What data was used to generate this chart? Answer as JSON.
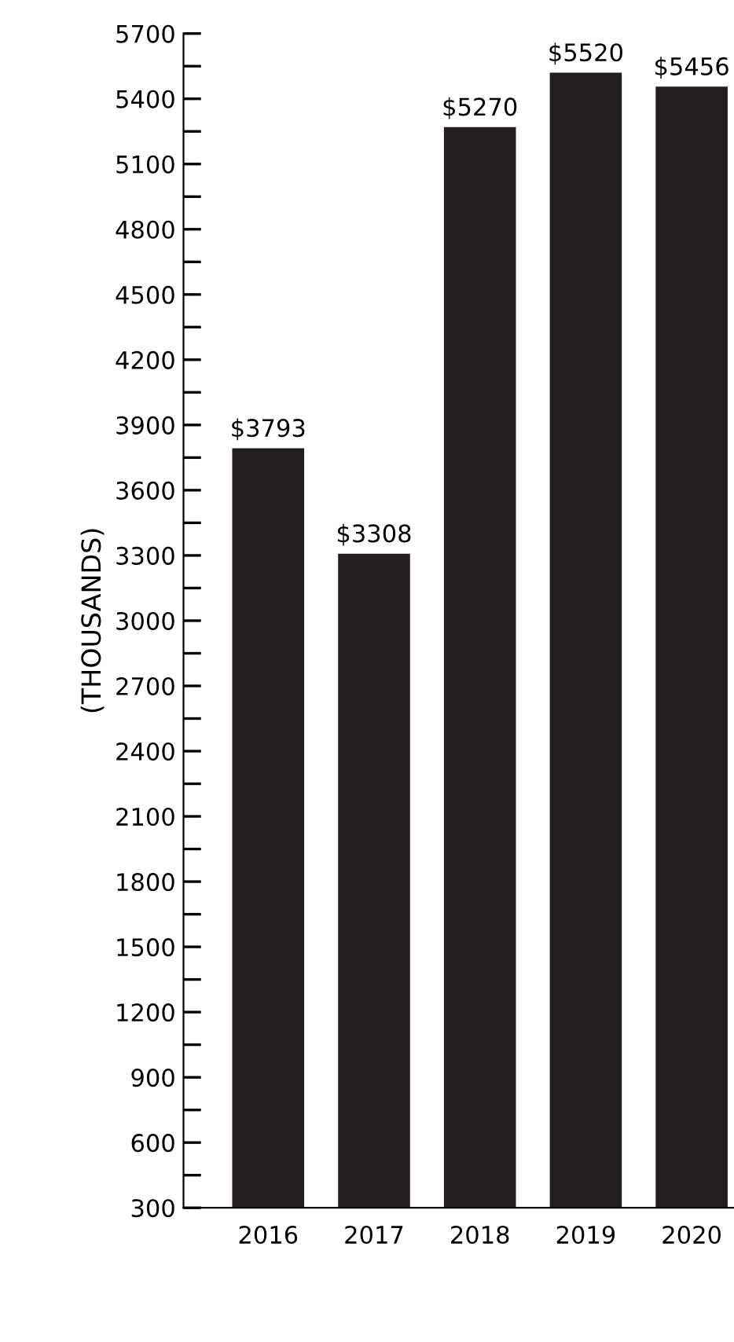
{
  "chart_data": {
    "type": "bar",
    "categories": [
      "2016",
      "2017",
      "2018",
      "2019",
      "2020"
    ],
    "values": [
      3793,
      3308,
      5270,
      5520,
      5456
    ],
    "value_labels": [
      "$3793",
      "$3308",
      "$5270",
      "$5520",
      "$5456"
    ],
    "color": "#231f20",
    "ylabel": "(THOUSANDS)",
    "ylim": [
      300,
      5700
    ],
    "yticks": [
      300,
      {
        "value": 450,
        "label": null
      },
      600,
      {
        "value": 750,
        "label": null
      },
      900,
      {
        "value": 1050,
        "label": null
      },
      1200,
      {
        "value": 1350,
        "label": null
      },
      1500,
      {
        "value": 1650,
        "label": null
      },
      1800,
      {
        "value": 1950,
        "label": null
      },
      2100,
      {
        "value": 2250,
        "label": null
      },
      2400,
      {
        "value": 2550,
        "label": null
      },
      2700,
      {
        "value": 2850,
        "label": null
      },
      3000,
      {
        "value": 3150,
        "label": null
      },
      3300,
      {
        "value": 3450,
        "label": null
      },
      3600,
      {
        "value": 3750,
        "label": null
      },
      3900,
      {
        "value": 4050,
        "label": null
      },
      4200,
      {
        "value": 4350,
        "label": null
      },
      4500,
      {
        "value": 4650,
        "label": null
      },
      4800,
      {
        "value": 4950,
        "label": null
      },
      5100,
      {
        "value": 5250,
        "label": null
      },
      5400,
      {
        "value": 5550,
        "label": null
      },
      5700
    ],
    "grid": false
  }
}
